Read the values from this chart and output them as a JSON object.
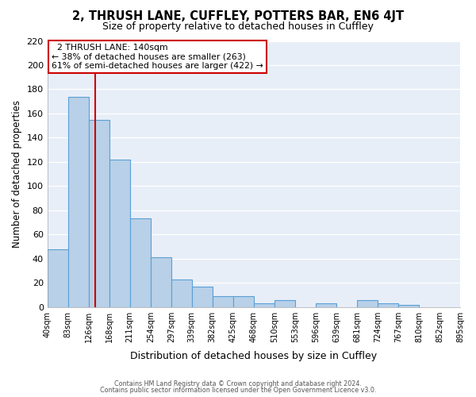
{
  "title": "2, THRUSH LANE, CUFFLEY, POTTERS BAR, EN6 4JT",
  "subtitle": "Size of property relative to detached houses in Cuffley",
  "xlabel": "Distribution of detached houses by size in Cuffley",
  "ylabel": "Number of detached properties",
  "bar_values": [
    48,
    174,
    155,
    122,
    73,
    41,
    23,
    17,
    9,
    9,
    3,
    6,
    0,
    3,
    0,
    6,
    3,
    2,
    0,
    0
  ],
  "bin_labels": [
    "40sqm",
    "83sqm",
    "126sqm",
    "168sqm",
    "211sqm",
    "254sqm",
    "297sqm",
    "339sqm",
    "382sqm",
    "425sqm",
    "468sqm",
    "510sqm",
    "553sqm",
    "596sqm",
    "639sqm",
    "681sqm",
    "724sqm",
    "767sqm",
    "810sqm",
    "852sqm",
    "895sqm"
  ],
  "n_bins": 20,
  "bar_color": "#b8d0e8",
  "bar_edge_color": "#5a9fd4",
  "vline_x": 3,
  "vline_color": "#cc0000",
  "annotation_title": "2 THRUSH LANE: 140sqm",
  "annotation_line1": "← 38% of detached houses are smaller (263)",
  "annotation_line2": "61% of semi-detached houses are larger (422) →",
  "annotation_box_color": "#ffffff",
  "annotation_box_edge": "#cc0000",
  "ylim": [
    0,
    220
  ],
  "yticks": [
    0,
    20,
    40,
    60,
    80,
    100,
    120,
    140,
    160,
    180,
    200,
    220
  ],
  "plot_bg_color": "#e8eef8",
  "fig_bg_color": "#ffffff",
  "grid_color": "#ffffff",
  "footer_line1": "Contains HM Land Registry data © Crown copyright and database right 2024.",
  "footer_line2": "Contains public sector information licensed under the Open Government Licence v3.0."
}
